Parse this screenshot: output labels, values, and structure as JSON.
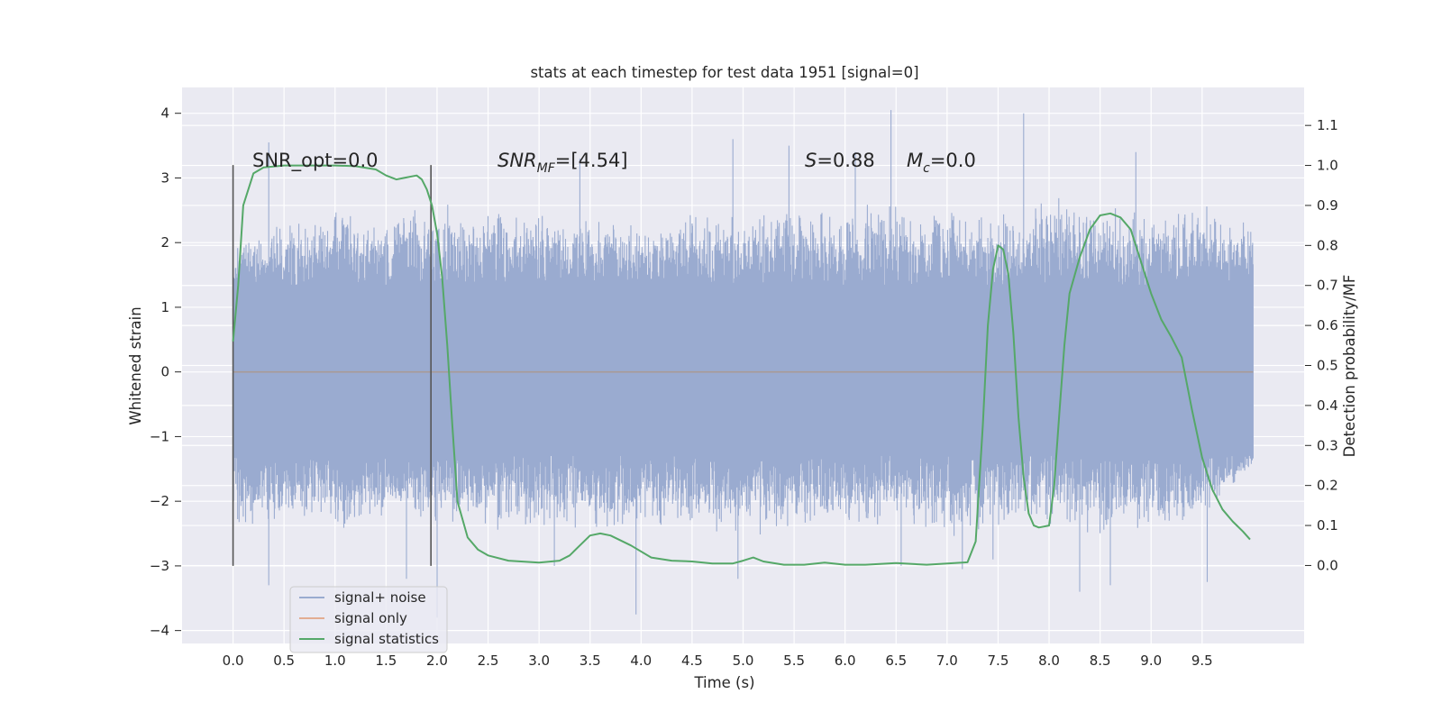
{
  "chart_data": {
    "type": "line",
    "title": "stats at each timestep for test data 1951 [signal=0]",
    "xlabel": "Time (s)",
    "ylabel": "Whitened strain",
    "y2label": "Detection probability/MF",
    "xlim": [
      -0.5,
      10.5
    ],
    "ylim": [
      -4.2,
      4.4
    ],
    "y2lim": [
      -0.195,
      1.195
    ],
    "x_ticks": [
      "0.0",
      "0.5",
      "1.0",
      "1.5",
      "2.0",
      "2.5",
      "3.0",
      "3.5",
      "4.0",
      "4.5",
      "5.0",
      "5.5",
      "6.0",
      "6.5",
      "7.0",
      "7.5",
      "8.0",
      "8.5",
      "9.0",
      "9.5"
    ],
    "y_ticks": [
      "4",
      "3",
      "2",
      "1",
      "0",
      "−1",
      "−2",
      "−3",
      "−4"
    ],
    "y2_ticks": [
      "1.1",
      "1.0",
      "0.9",
      "0.8",
      "0.7",
      "0.6",
      "0.5",
      "0.4",
      "0.3",
      "0.2",
      "0.1",
      "0.0"
    ],
    "grid": true,
    "legend_position": "lower-left",
    "colors": {
      "background": "#eaeaf2",
      "grid": "#ffffff",
      "noise": "#9aabd0",
      "signal_only": "#dd8452",
      "statistics": "#55a868",
      "marker_lines": "#555555"
    },
    "annotations": {
      "snr_opt": "SNR_opt=0.0",
      "snr_mf_main": "SNR",
      "snr_mf_sub": "MF",
      "snr_mf_value": "=[4.54]",
      "s_main": "S",
      "s_value": "=0.88",
      "mc_main": "M",
      "mc_sub": "c",
      "mc_value": "=0.0"
    },
    "vertical_markers": [
      {
        "x": 0.0,
        "y_range": [
          -3.0,
          3.2
        ]
      },
      {
        "x": 1.94,
        "y_range": [
          -3.0,
          3.2
        ]
      }
    ],
    "series": [
      {
        "name": "signal+ noise",
        "x_range": [
          0,
          10
        ],
        "envelope_upper": [
          1.9,
          2.4,
          2.6,
          2.5,
          2.7,
          2.6,
          2.5,
          2.4,
          2.3,
          2.5,
          2.4,
          2.6,
          2.5,
          2.7,
          2.6,
          2.5,
          2.8,
          2.6,
          2.5,
          2.7,
          2.3
        ],
        "envelope_lower": [
          -2.5,
          -2.4,
          -2.5,
          -2.3,
          -2.4,
          -2.5,
          -2.4,
          -2.6,
          -2.5,
          -2.4,
          -2.6,
          -2.4,
          -2.5,
          -2.3,
          -2.6,
          -2.5,
          -2.4,
          -2.7,
          -2.5,
          -2.4,
          -1.5
        ],
        "peaks": [
          [
            0.35,
            3.55
          ],
          [
            0.35,
            -3.3
          ],
          [
            1.7,
            -3.2
          ],
          [
            3.4,
            3.3
          ],
          [
            3.15,
            -3.0
          ],
          [
            3.95,
            -3.75
          ],
          [
            4.9,
            3.6
          ],
          [
            4.95,
            -3.2
          ],
          [
            6.45,
            4.05
          ],
          [
            6.55,
            -3.0
          ],
          [
            7.15,
            -3.05
          ],
          [
            7.75,
            4.0
          ],
          [
            8.3,
            -3.4
          ],
          [
            8.6,
            -3.3
          ],
          [
            9.55,
            -3.25
          ],
          [
            5.45,
            3.5
          ],
          [
            6.1,
            3.4
          ],
          [
            8.85,
            3.4
          ],
          [
            7.45,
            -2.9
          ],
          [
            2.0,
            -3.8
          ]
        ]
      },
      {
        "name": "signal only",
        "x": [
          0,
          10
        ],
        "y": [
          0.0,
          0.0
        ]
      },
      {
        "name": "signal statistics",
        "x": [
          0.0,
          0.05,
          0.1,
          0.2,
          0.3,
          0.5,
          0.8,
          1.0,
          1.2,
          1.4,
          1.5,
          1.6,
          1.7,
          1.8,
          1.85,
          1.9,
          1.95,
          2.0,
          2.05,
          2.1,
          2.15,
          2.2,
          2.3,
          2.4,
          2.5,
          2.7,
          3.0,
          3.2,
          3.3,
          3.4,
          3.5,
          3.6,
          3.7,
          3.9,
          4.1,
          4.3,
          4.5,
          4.7,
          4.9,
          5.0,
          5.1,
          5.2,
          5.4,
          5.6,
          5.8,
          6.0,
          6.2,
          6.5,
          6.8,
          7.0,
          7.2,
          7.28,
          7.35,
          7.4,
          7.45,
          7.5,
          7.55,
          7.6,
          7.65,
          7.7,
          7.75,
          7.8,
          7.85,
          7.9,
          8.0,
          8.05,
          8.1,
          8.15,
          8.2,
          8.3,
          8.4,
          8.5,
          8.6,
          8.7,
          8.8,
          8.9,
          9.0,
          9.1,
          9.2,
          9.3,
          9.4,
          9.5,
          9.6,
          9.7,
          9.8,
          9.9,
          9.97
        ],
        "y": [
          0.56,
          0.7,
          0.9,
          0.98,
          0.995,
          1.0,
          1.0,
          1.0,
          0.998,
          0.99,
          0.975,
          0.965,
          0.97,
          0.975,
          0.965,
          0.94,
          0.9,
          0.83,
          0.72,
          0.55,
          0.35,
          0.16,
          0.07,
          0.04,
          0.025,
          0.012,
          0.007,
          0.012,
          0.025,
          0.05,
          0.075,
          0.08,
          0.075,
          0.05,
          0.02,
          0.012,
          0.01,
          0.005,
          0.005,
          0.012,
          0.02,
          0.01,
          0.002,
          0.002,
          0.007,
          0.002,
          0.002,
          0.006,
          0.002,
          0.005,
          0.008,
          0.06,
          0.35,
          0.6,
          0.74,
          0.8,
          0.79,
          0.73,
          0.58,
          0.37,
          0.22,
          0.13,
          0.1,
          0.095,
          0.1,
          0.2,
          0.38,
          0.55,
          0.68,
          0.77,
          0.84,
          0.875,
          0.88,
          0.87,
          0.84,
          0.76,
          0.68,
          0.615,
          0.57,
          0.52,
          0.39,
          0.27,
          0.19,
          0.14,
          0.11,
          0.085,
          0.065
        ]
      }
    ]
  }
}
